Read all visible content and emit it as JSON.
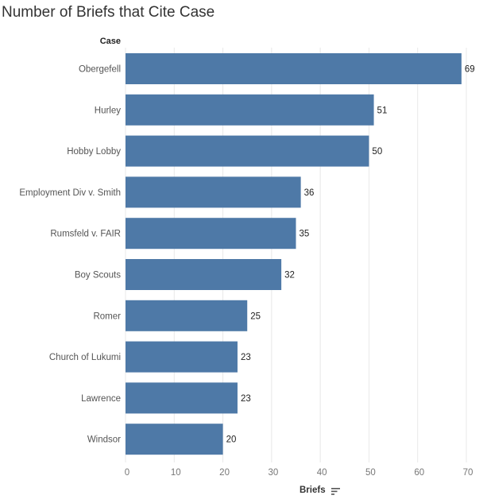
{
  "chart_data": {
    "type": "bar",
    "orientation": "horizontal",
    "title": "Number of Briefs that Cite Case",
    "row_header": "Case",
    "xlabel": "Briefs",
    "categories": [
      "Obergefell",
      "Hurley",
      "Hobby Lobby",
      "Employment Div v. Smith",
      "Rumsfeld v. FAIR",
      "Boy Scouts",
      "Romer",
      "Church of Lukumi",
      "Lawrence",
      "Windsor"
    ],
    "values": [
      69,
      51,
      50,
      36,
      35,
      32,
      25,
      23,
      23,
      20
    ],
    "xlim": [
      0,
      70
    ],
    "xticks": [
      0,
      10,
      20,
      30,
      40,
      50,
      60,
      70
    ],
    "grid": "vertical",
    "bar_color": "#4e79a7",
    "data_labels": true
  },
  "icons": {
    "sort": "sort-descending-icon"
  }
}
